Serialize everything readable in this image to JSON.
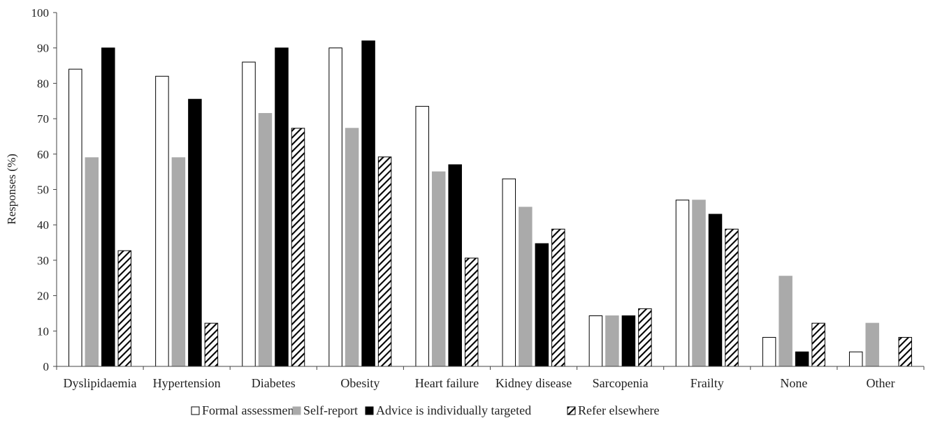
{
  "chart_data": {
    "type": "bar",
    "title": "",
    "xlabel": "",
    "ylabel": "Responses (%)",
    "ylim": [
      0,
      100
    ],
    "yticks": [
      "0",
      "10",
      "20",
      "30",
      "40",
      "50",
      "60",
      "70",
      "80",
      "90",
      "100"
    ],
    "grid": false,
    "legend_position": "bottom",
    "categories": [
      "Dyslipidaemia",
      "Hypertension",
      "Diabetes",
      "Obesity",
      "Heart failure",
      "Kidney disease",
      "Sarcopenia",
      "Frailty",
      "None",
      "Other"
    ],
    "series": [
      {
        "name": "Formal assessment",
        "style": "open",
        "fill": "#ffffff",
        "stroke": "#000000",
        "values": [
          84,
          82,
          86,
          90,
          73.5,
          53,
          14.3,
          47,
          8.2,
          4.1
        ]
      },
      {
        "name": "Self-report",
        "style": "grey",
        "fill": "#aaaaaa",
        "stroke": "#aaaaaa",
        "values": [
          59,
          59,
          71.5,
          67.3,
          55,
          45,
          14.3,
          47,
          25.5,
          12.2
        ]
      },
      {
        "name": "Advice is individually targeted",
        "style": "solid",
        "fill": "#000000",
        "stroke": "#000000",
        "values": [
          90,
          75.5,
          90,
          92,
          57,
          34.7,
          14.3,
          43,
          4.1,
          0
        ]
      },
      {
        "name": "Refer elsewhere",
        "style": "hatched",
        "fill": "url(#hatch)",
        "stroke": "#000000",
        "values": [
          32.7,
          12.2,
          67.3,
          59.2,
          30.6,
          38.8,
          16.3,
          38.8,
          12.2,
          8.2
        ]
      }
    ]
  }
}
